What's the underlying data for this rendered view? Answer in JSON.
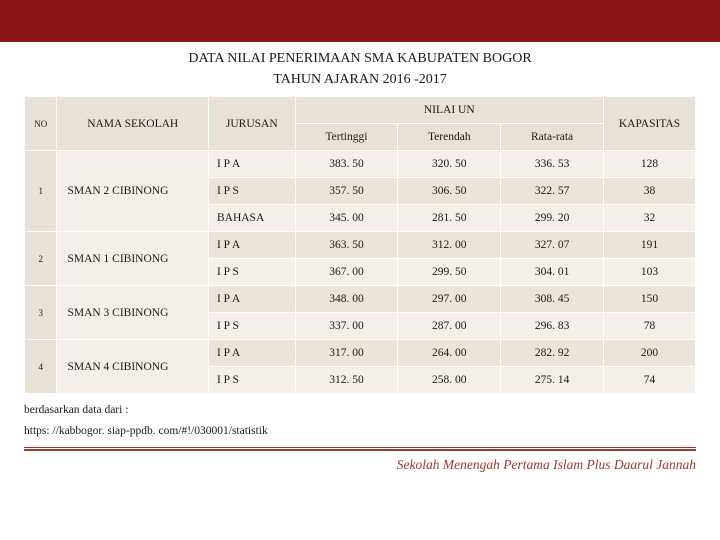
{
  "colors": {
    "top_bar": "#8c1515",
    "header_bg": "#e9e1d5",
    "row_alt1": "#f4efe9",
    "row_alt2": "#ece4d8",
    "hr_color": "#a03a2c",
    "footer_color": "#a03a2c",
    "text": "#1a1a1a"
  },
  "title": {
    "line1": "DATA NILAI PENERIMAAN SMA KABUPATEN BOGOR",
    "line2": "TAHUN AJARAN 2016 -2017"
  },
  "headers": {
    "no": "NO",
    "school": "NAMA SEKOLAH",
    "jur": "JURUSAN",
    "nilai": "NILAI UN",
    "high": "Tertinggi",
    "low": "Terendah",
    "avg": "Rata-rata",
    "cap": "KAPASITAS"
  },
  "schools": [
    {
      "no": "1",
      "name": "SMAN 2 CIBINONG",
      "rows": [
        {
          "jur": "I P A",
          "high": "383. 50",
          "low": "320. 50",
          "avg": "336. 53",
          "cap": "128"
        },
        {
          "jur": "I P S",
          "high": "357. 50",
          "low": "306. 50",
          "avg": "322. 57",
          "cap": "38"
        },
        {
          "jur": "BAHASA",
          "high": "345. 00",
          "low": "281. 50",
          "avg": "299. 20",
          "cap": "32"
        }
      ]
    },
    {
      "no": "2",
      "name": "SMAN 1 CIBINONG",
      "rows": [
        {
          "jur": "I P A",
          "high": "363. 50",
          "low": "312. 00",
          "avg": "327. 07",
          "cap": "191"
        },
        {
          "jur": "I P S",
          "high": "367. 00",
          "low": "299. 50",
          "avg": "304. 01",
          "cap": "103"
        }
      ]
    },
    {
      "no": "3",
      "name": "SMAN 3 CIBINONG",
      "rows": [
        {
          "jur": "I P A",
          "high": "348. 00",
          "low": "297. 00",
          "avg": "308. 45",
          "cap": "150"
        },
        {
          "jur": "I P S",
          "high": "337. 00",
          "low": "287. 00",
          "avg": "296. 83",
          "cap": "78"
        }
      ]
    },
    {
      "no": "4",
      "name": "SMAN 4 CIBINONG",
      "rows": [
        {
          "jur": "I P A",
          "high": "317. 00",
          "low": "264. 00",
          "avg": "282. 92",
          "cap": "200"
        },
        {
          "jur": "I P S",
          "high": "312. 50",
          "low": "258. 00",
          "avg": "275. 14",
          "cap": "74"
        }
      ]
    }
  ],
  "source": {
    "label": "berdasarkan data dari :",
    "url_text": "https: //kabbogor. siap-ppdb. com/#!/030001/statistik"
  },
  "footer": "Sekolah Menengah Pertama Islam Plus Daarul Jannah"
}
